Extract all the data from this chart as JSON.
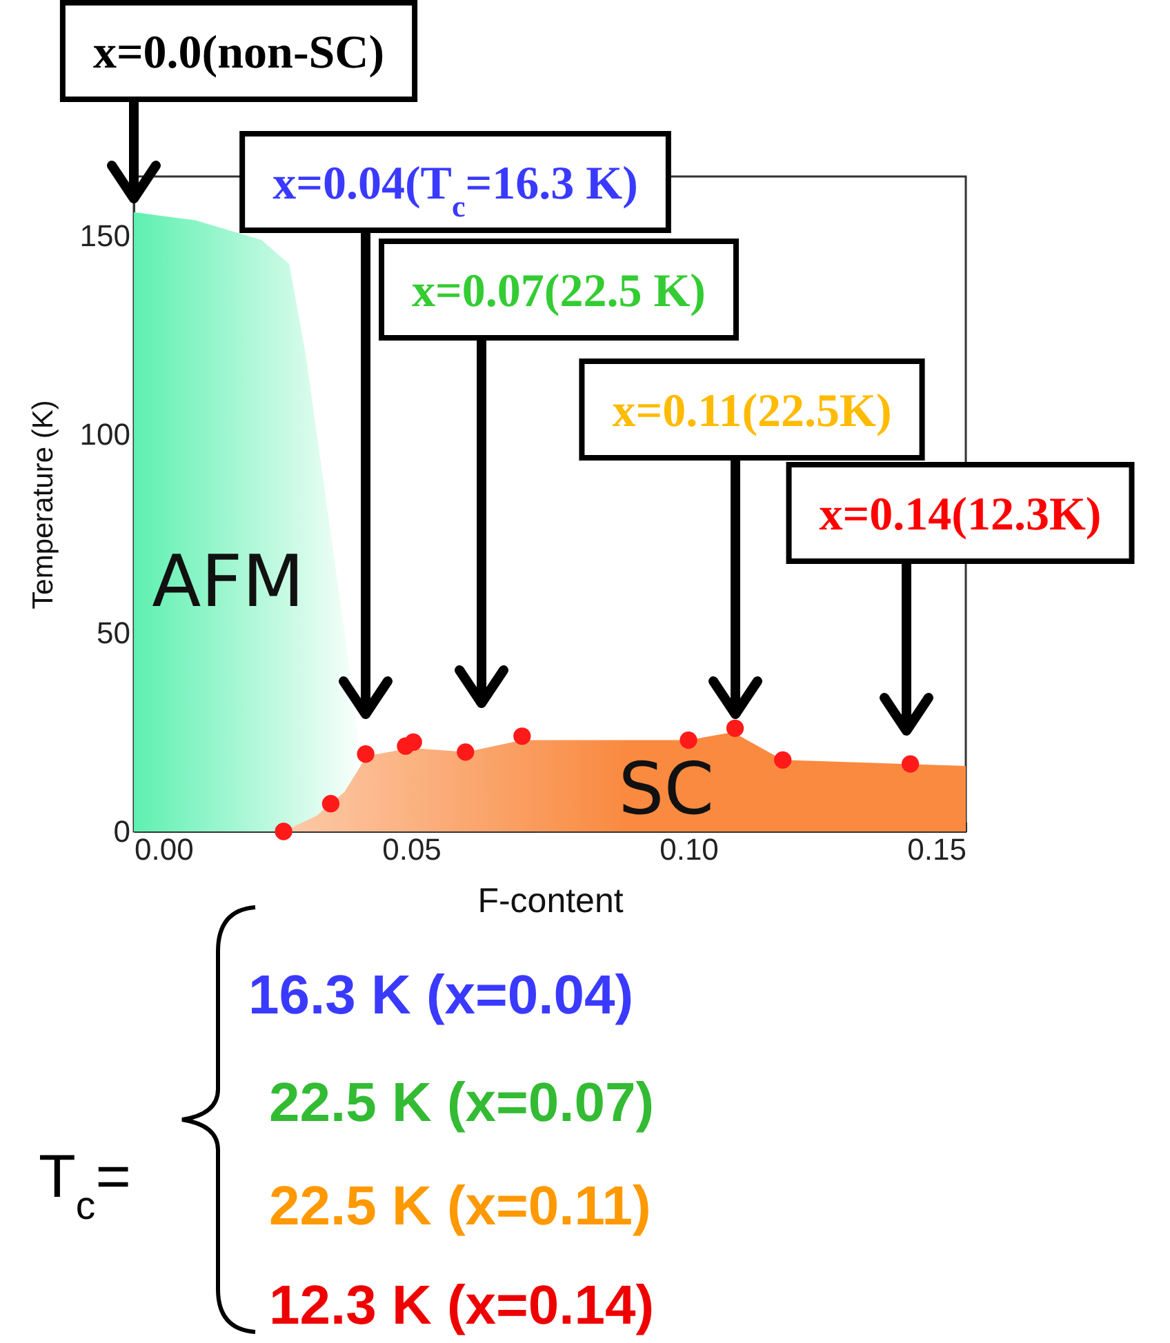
{
  "chart_data": {
    "type": "scatter",
    "xlabel": "F-content",
    "ylabel": "Temperature (K)",
    "xlim": [
      0,
      0.15
    ],
    "ylim": [
      0,
      165
    ],
    "xticks": [
      {
        "value": 0,
        "label": "0.00"
      },
      {
        "value": 0.05,
        "label": "0.05"
      },
      {
        "value": 0.1,
        "label": "0.10"
      },
      {
        "value": 0.15,
        "label": "0.15"
      }
    ],
    "yticks": [
      0,
      50,
      100,
      150
    ],
    "series": [
      {
        "name": "AFM",
        "type": "area",
        "color": "#5ef0b0",
        "x": [
          0,
          0.011,
          0.023,
          0.028,
          0.031,
          0.034,
          0.037,
          0.04,
          0.042
        ],
        "values": [
          156,
          154,
          149,
          143,
          120,
          90,
          60,
          30,
          0
        ]
      },
      {
        "name": "SC",
        "type": "area",
        "color": "#f98a40",
        "x": [
          0.027,
          0.033,
          0.038,
          0.042,
          0.05,
          0.06,
          0.07,
          0.1,
          0.108,
          0.117,
          0.15
        ],
        "values": [
          0,
          4,
          10,
          19,
          21,
          20,
          23,
          23,
          25,
          18,
          16.5
        ]
      },
      {
        "marker": "circle",
        "color": "#ff1a1a",
        "x": [
          0.027,
          0.0355,
          0.0418,
          0.049,
          0.0504,
          0.0598,
          0.07,
          0.1,
          0.1084,
          0.117,
          0.14
        ],
        "values": [
          0,
          7,
          19.5,
          21.5,
          22.5,
          20,
          24,
          23,
          26,
          18,
          17
        ]
      }
    ],
    "annotations": [
      "x=0.0(non-SC)",
      "x=0.04(T$_{c}$=16.3 K)",
      "x=0.07(22.5 K)",
      "x=0.11(22.5K)",
      "x=0.14(12.3K)",
      "T$_{c}$=",
      "16.3 K (x=0.04)",
      "22.5 K (x=0.07)",
      "22.5 K (x=0.11)",
      "12.3 K (x=0.14)"
    ]
  }
}
